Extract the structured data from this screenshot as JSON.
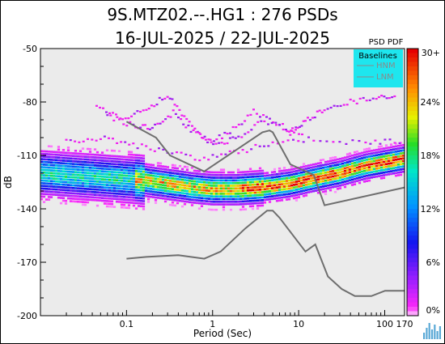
{
  "title": "9S.MTZ02.--.HG1 : 276 PSDs",
  "subtitle": "16-JUL-2025 / 22-JUL-2025",
  "chart_data": {
    "type": "heatmap",
    "title": "9S.MTZ02.--.HG1 : 276 PSDs",
    "subtitle": "16-JUL-2025 / 22-JUL-2025",
    "xlabel": "Period (Sec)",
    "ylabel": "dB",
    "x_scale": "log",
    "xlim": [
      0.01,
      170
    ],
    "ylim": [
      -200,
      -50
    ],
    "x_ticks": [
      "0.1",
      "1",
      "10",
      "100",
      "170"
    ],
    "x_tick_values": [
      0.1,
      1,
      10,
      100,
      170
    ],
    "y_ticks": [
      "-50",
      "-80",
      "-110",
      "-140",
      "-170",
      "-200"
    ],
    "y_tick_values": [
      -50,
      -80,
      -110,
      -140,
      -170,
      -200
    ],
    "colorbar": {
      "title": "PSD PDF",
      "ticks": [
        "30+",
        "24%",
        "18%",
        "12%",
        "6%",
        "0%"
      ],
      "tick_values": [
        30,
        24,
        18,
        12,
        6,
        0
      ]
    },
    "legend": {
      "title": "Baselines",
      "entries": [
        "HNM",
        "LNM"
      ],
      "placement": "top-right"
    },
    "series": [
      {
        "name": "HNM",
        "x": [
          0.1,
          0.22,
          0.32,
          0.8,
          3.8,
          4.6,
          5.0,
          8.0,
          15.0,
          20.0,
          170
        ],
        "y": [
          -91,
          -100,
          -110,
          -119,
          -97,
          -96,
          -97,
          -115,
          -121,
          -138,
          -128
        ]
      },
      {
        "name": "LNM",
        "x": [
          0.1,
          0.17,
          0.4,
          0.8,
          1.24,
          2.4,
          4.3,
          5.0,
          6.0,
          10.0,
          12.0,
          15.6,
          21.9,
          31.6,
          45.0,
          70.0,
          101.0,
          154.0,
          170
        ],
        "y": [
          -168,
          -167,
          -166,
          -168,
          -164,
          -151,
          -141,
          -141,
          -145,
          -159,
          -164,
          -160,
          -178,
          -185,
          -189,
          -189,
          -186,
          -186,
          -186
        ]
      }
    ],
    "density_mode": {
      "x": [
        0.01,
        0.02,
        0.04,
        0.08,
        0.15,
        0.3,
        0.6,
        1,
        2,
        4,
        8,
        15,
        30,
        60,
        100,
        170
      ],
      "y": [
        -120,
        -121,
        -122,
        -123,
        -124,
        -126,
        -128,
        -129,
        -129,
        -128,
        -126,
        -123,
        -120,
        -116,
        -114,
        -112
      ]
    }
  }
}
